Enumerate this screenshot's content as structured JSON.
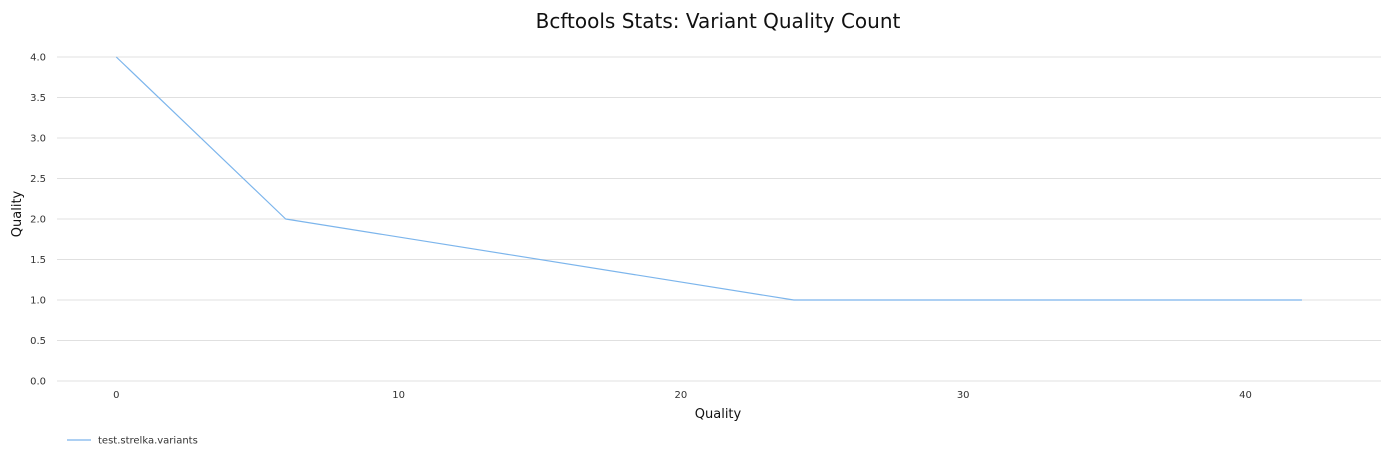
{
  "chart_data": {
    "type": "line",
    "title": "Bcftools Stats: Variant Quality Count",
    "xlabel": "Quality",
    "ylabel": "Quality",
    "xlim": [
      -2.1,
      44.8
    ],
    "ylim": [
      0,
      4.0
    ],
    "x_ticks": [
      0,
      10,
      20,
      30,
      40
    ],
    "y_ticks": [
      0.0,
      0.5,
      1.0,
      1.5,
      2.0,
      2.5,
      3.0,
      3.5,
      4.0
    ],
    "grid": true,
    "legend_position": "bottom-left",
    "series": [
      {
        "name": "test.strelka.variants",
        "color": "#7cb5ec",
        "x": [
          0,
          6,
          24,
          42
        ],
        "y": [
          4,
          2,
          1,
          1
        ]
      }
    ]
  }
}
